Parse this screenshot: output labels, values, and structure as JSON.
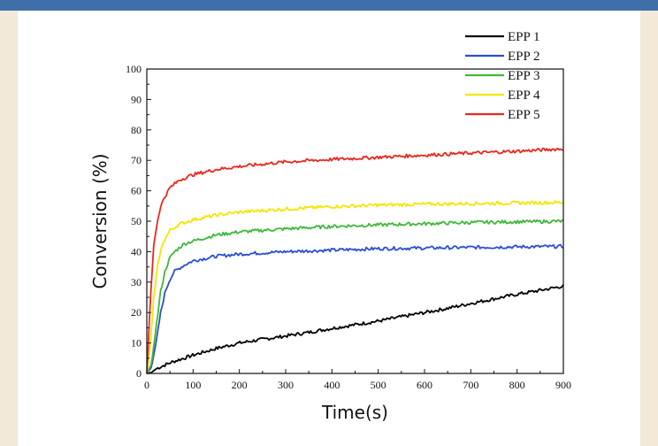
{
  "chart_data": {
    "type": "line",
    "xlabel": "Time(s)",
    "ylabel": "Conversion (%)",
    "xlim": [
      0,
      900
    ],
    "ylim": [
      0,
      100
    ],
    "xticks": [
      0,
      100,
      200,
      300,
      400,
      500,
      600,
      700,
      800,
      900
    ],
    "yticks": [
      0,
      10,
      20,
      30,
      40,
      50,
      60,
      70,
      80,
      90,
      100
    ],
    "grid": false,
    "legend_position": "top-right",
    "series": [
      {
        "name": "EPP 1",
        "color": "#000000",
        "points": [
          [
            0,
            0
          ],
          [
            10,
            0.3
          ],
          [
            20,
            1.5
          ],
          [
            50,
            3.5
          ],
          [
            100,
            6
          ],
          [
            150,
            8.2
          ],
          [
            200,
            10
          ],
          [
            250,
            11.2
          ],
          [
            300,
            12.3
          ],
          [
            350,
            13.5
          ],
          [
            400,
            14.8
          ],
          [
            450,
            16
          ],
          [
            500,
            17.2
          ],
          [
            550,
            18.6
          ],
          [
            600,
            20
          ],
          [
            650,
            21.4
          ],
          [
            700,
            23
          ],
          [
            750,
            24.5
          ],
          [
            800,
            26
          ],
          [
            850,
            27.3
          ],
          [
            900,
            28.7
          ]
        ]
      },
      {
        "name": "EPP 2",
        "color": "#2b4fd1",
        "points": [
          [
            0,
            0
          ],
          [
            10,
            2
          ],
          [
            20,
            10
          ],
          [
            30,
            20
          ],
          [
            40,
            27
          ],
          [
            50,
            31
          ],
          [
            60,
            33.5
          ],
          [
            80,
            35.5
          ],
          [
            100,
            37
          ],
          [
            150,
            38.5
          ],
          [
            200,
            39.2
          ],
          [
            300,
            40
          ],
          [
            400,
            40.5
          ],
          [
            500,
            41
          ],
          [
            600,
            41.2
          ],
          [
            700,
            41.4
          ],
          [
            800,
            41.6
          ],
          [
            900,
            41.7
          ]
        ]
      },
      {
        "name": "EPP 3",
        "color": "#3fb83a",
        "points": [
          [
            0,
            0
          ],
          [
            10,
            3
          ],
          [
            20,
            15
          ],
          [
            30,
            27
          ],
          [
            40,
            34
          ],
          [
            50,
            38
          ],
          [
            60,
            40
          ],
          [
            80,
            42.5
          ],
          [
            100,
            43.5
          ],
          [
            150,
            45.5
          ],
          [
            200,
            46.5
          ],
          [
            300,
            47.5
          ],
          [
            400,
            48.3
          ],
          [
            500,
            48.8
          ],
          [
            600,
            49.2
          ],
          [
            700,
            49.6
          ],
          [
            800,
            49.8
          ],
          [
            900,
            50
          ]
        ]
      },
      {
        "name": "EPP 4",
        "color": "#f2e600",
        "points": [
          [
            0,
            0
          ],
          [
            8,
            10
          ],
          [
            15,
            25
          ],
          [
            25,
            37
          ],
          [
            35,
            43
          ],
          [
            50,
            47
          ],
          [
            70,
            49
          ],
          [
            100,
            50.5
          ],
          [
            150,
            52
          ],
          [
            200,
            53
          ],
          [
            300,
            54
          ],
          [
            400,
            54.8
          ],
          [
            500,
            55.3
          ],
          [
            600,
            55.6
          ],
          [
            700,
            55.8
          ],
          [
            800,
            56
          ],
          [
            900,
            56.2
          ]
        ]
      },
      {
        "name": "EPP 5",
        "color": "#e8281e",
        "points": [
          [
            0,
            0
          ],
          [
            8,
            25
          ],
          [
            15,
            42
          ],
          [
            25,
            52
          ],
          [
            35,
            57
          ],
          [
            50,
            61
          ],
          [
            70,
            63.5
          ],
          [
            100,
            65.3
          ],
          [
            150,
            67
          ],
          [
            200,
            68
          ],
          [
            300,
            69.5
          ],
          [
            400,
            70.3
          ],
          [
            500,
            71
          ],
          [
            600,
            71.7
          ],
          [
            700,
            72.4
          ],
          [
            800,
            73
          ],
          [
            900,
            73.8
          ]
        ]
      }
    ]
  }
}
